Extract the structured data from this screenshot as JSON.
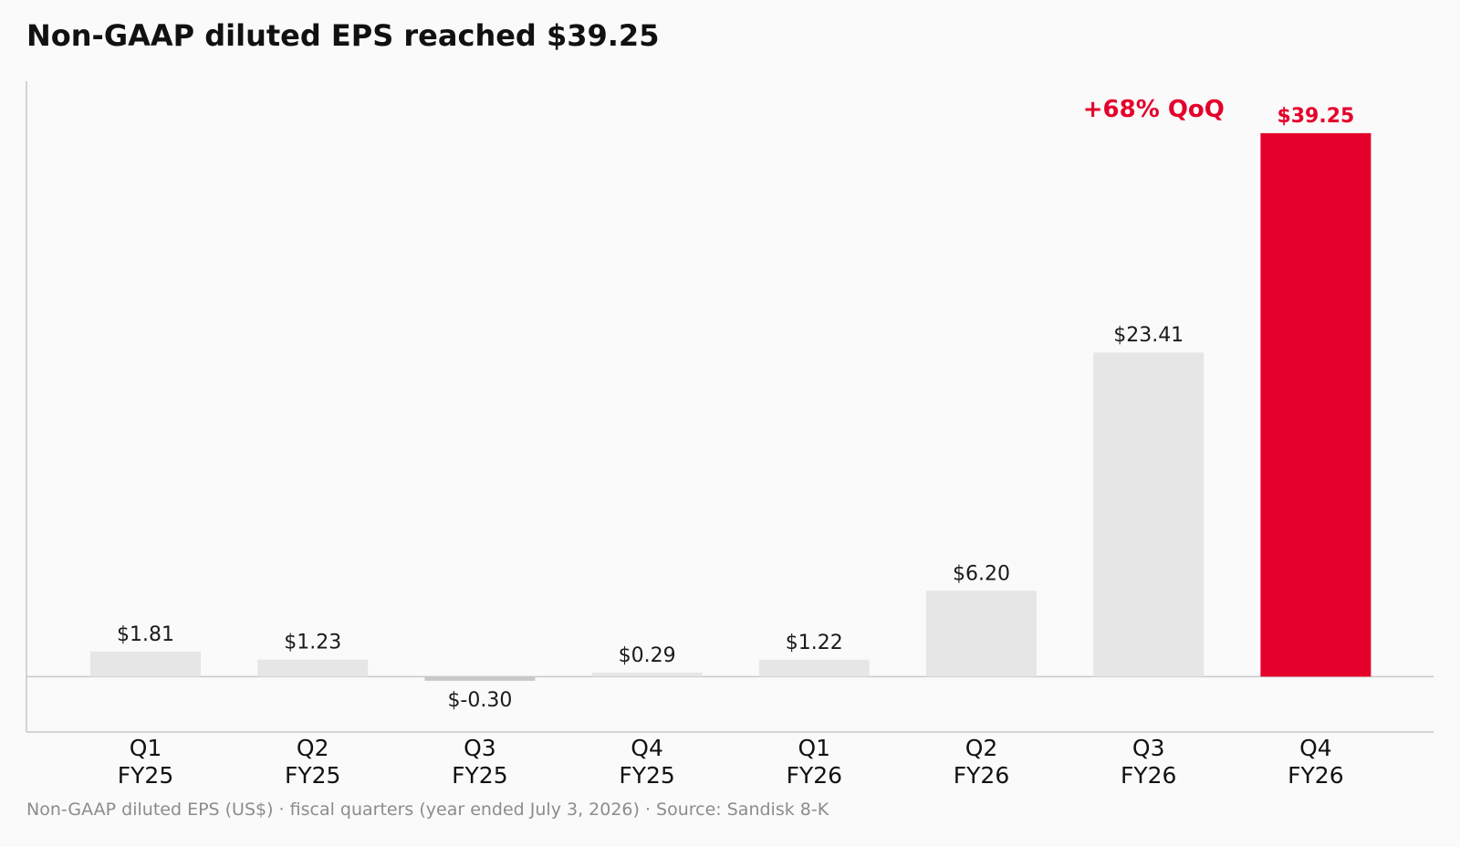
{
  "title": "Non-GAAP diluted EPS reached $39.25",
  "footer": "Non-GAAP diluted EPS (US$) · fiscal quarters (year ended July 3, 2026) · Source: Sandisk 8-K",
  "colors": {
    "background": "#fafafa",
    "bar_default": "#e6e6e6",
    "bar_negative": "#c8c8c8",
    "highlight": "#e4002b",
    "axis": "#c8c8c8"
  },
  "chart_data": {
    "type": "bar",
    "title": "Non-GAAP diluted EPS reached $39.25",
    "categories": [
      [
        "Q1",
        "FY25"
      ],
      [
        "Q2",
        "FY25"
      ],
      [
        "Q3",
        "FY25"
      ],
      [
        "Q4",
        "FY25"
      ],
      [
        "Q1",
        "FY26"
      ],
      [
        "Q2",
        "FY26"
      ],
      [
        "Q3",
        "FY26"
      ],
      [
        "Q4",
        "FY26"
      ]
    ],
    "values": [
      1.81,
      1.23,
      -0.3,
      0.29,
      1.22,
      6.2,
      23.41,
      39.25
    ],
    "labels": [
      "$1.81",
      "$1.23",
      "$-0.30",
      "$0.29",
      "$1.22",
      "$6.20",
      "$23.41",
      "$39.25"
    ],
    "highlight_index": 7,
    "ylim": [
      -4,
      43
    ],
    "grid": false,
    "annotations": [
      {
        "text": "+68% QoQ",
        "near_index": 7
      }
    ]
  }
}
